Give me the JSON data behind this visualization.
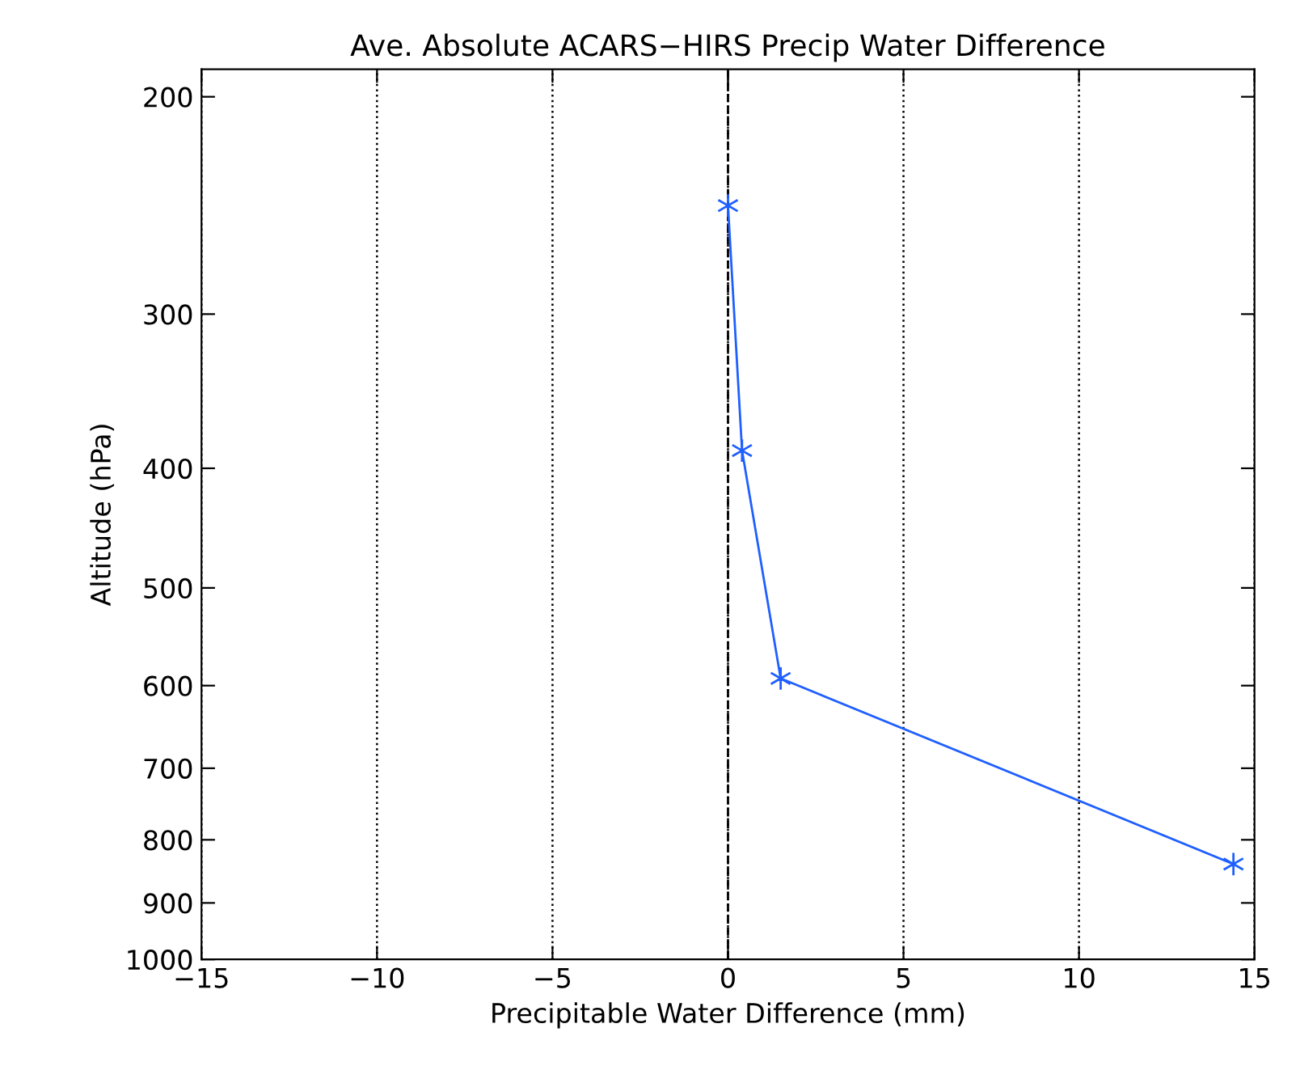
{
  "chart_data": {
    "type": "line",
    "title": "Ave. Absolute ACARS−HIRS Precip Water Difference",
    "xlabel": "Precipitable Water Difference (mm)",
    "ylabel": "Altitude (hPa)",
    "x": [
      0,
      0.4,
      1.5,
      14.4
    ],
    "series": [
      {
        "color": "#1f5fff",
        "values": [
          245,
          387,
          592,
          837
        ]
      }
    ],
    "log": "y",
    "xlim": [
      -15,
      15
    ],
    "xticks": [
      {
        "value": -15,
        "label": "−15"
      },
      {
        "value": -10,
        "label": "−10"
      },
      {
        "value": -5,
        "label": "−5"
      },
      0,
      5,
      10,
      15
    ],
    "ylim": [
      1000,
      190
    ],
    "yticks": [
      200,
      300,
      400,
      500,
      600,
      700,
      800,
      900,
      1000
    ],
    "grid": "x",
    "marker": "cross",
    "line_style": "solid",
    "ref_lines": [
      {
        "axis": "x",
        "value": 0,
        "line_style": "dashed",
        "color": "#000000"
      }
    ]
  }
}
